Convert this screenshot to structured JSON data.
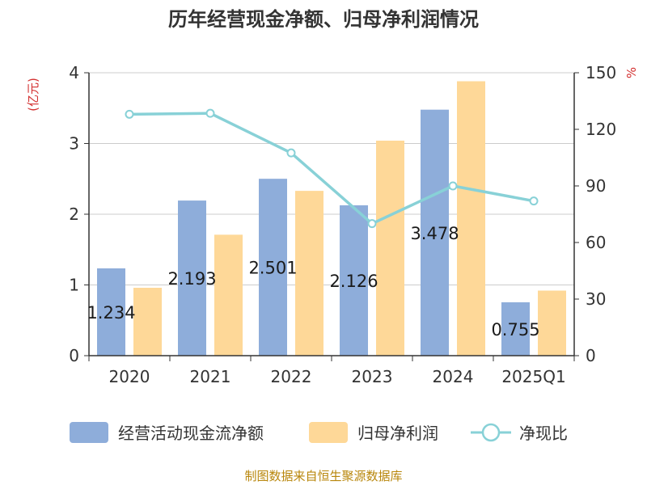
{
  "chart": {
    "title": "历年经营现金净额、归母净利润情况",
    "left_unit": "(亿元)",
    "right_unit": "%",
    "source": "制图数据来自恒生聚源数据库"
  },
  "colors": {
    "cash": "#8eadda",
    "profit": "#fed898",
    "ratio": "#88d1d7",
    "unit": "#d32f2f",
    "source": "#b8860b",
    "grid": "#cccccc",
    "axis": "#333333"
  },
  "chart_data": {
    "type": "bar",
    "categories": [
      "2020",
      "2021",
      "2022",
      "2023",
      "2024",
      "2025Q1"
    ],
    "series": [
      {
        "name": "经营活动现金流净额",
        "type": "bar",
        "axis": "left",
        "values": [
          1.234,
          2.193,
          2.501,
          2.126,
          3.478,
          0.755
        ],
        "labels": [
          "1.234",
          "2.193",
          "2.501",
          "2.126",
          "3.478",
          "0.755"
        ]
      },
      {
        "name": "归母净利润",
        "type": "bar",
        "axis": "left",
        "values": [
          0.96,
          1.71,
          2.33,
          3.04,
          3.88,
          0.92
        ]
      },
      {
        "name": "净现比",
        "type": "line",
        "axis": "right",
        "values": [
          128,
          128.5,
          107.5,
          70,
          90,
          82
        ]
      }
    ],
    "y_left": {
      "min": 0,
      "max": 4,
      "ticks": [
        0,
        1,
        2,
        3,
        4
      ]
    },
    "y_right": {
      "min": 0,
      "max": 150,
      "ticks": [
        0,
        30,
        60,
        90,
        120,
        150
      ]
    },
    "grid": true,
    "legend": "bottom"
  }
}
